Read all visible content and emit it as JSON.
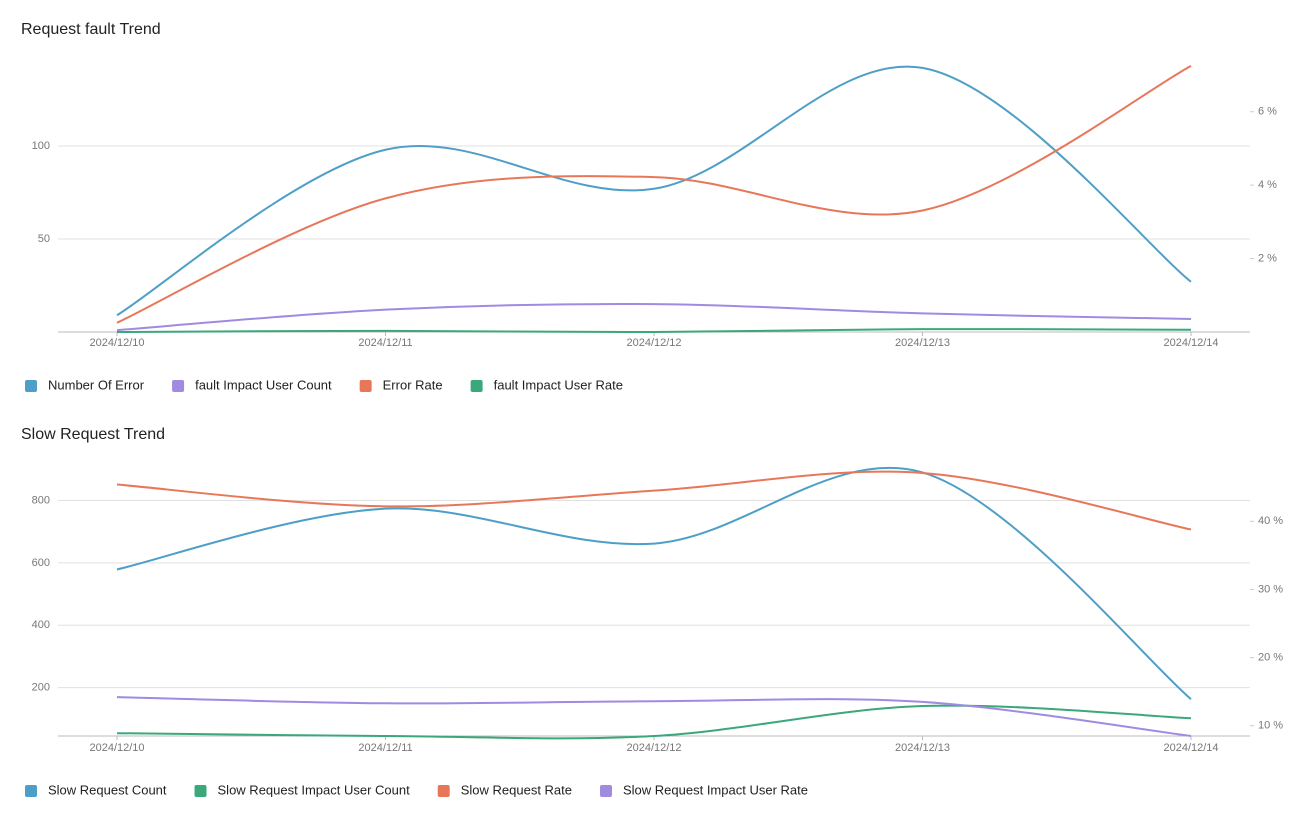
{
  "chart_data": [
    {
      "type": "line",
      "title": "Request fault Trend",
      "categories": [
        "2024/12/10",
        "2024/12/11",
        "2024/12/12",
        "2024/12/13",
        "2024/12/14"
      ],
      "series": [
        {
          "name": "Number Of Error",
          "color": "#4e9fc8",
          "values": [
            9,
            98,
            77,
            142,
            27
          ]
        },
        {
          "name": "fault Impact User Count",
          "color": "#a08be0",
          "values": [
            1,
            12,
            15,
            10,
            7
          ]
        },
        {
          "name": "Error Rate",
          "color": "#e8775a",
          "axis": "y2",
          "values": [
            0.25,
            3.64,
            4.22,
            3.31,
            7.25
          ]
        },
        {
          "name": "fault Impact User Rate",
          "color": "#3aa87a",
          "axis": "y2",
          "values": [
            0.0,
            0.03,
            0.0,
            0.08,
            0.06
          ]
        }
      ],
      "ylim": [
        0,
        150
      ],
      "yticks": [
        50,
        100
      ],
      "y2lim": [
        0,
        7.6
      ],
      "y2ticks": [
        {
          "value": 2,
          "label": "2 %"
        },
        {
          "value": 4,
          "label": "4 %"
        },
        {
          "value": 6,
          "label": "6 %"
        }
      ],
      "grid": true,
      "smooth": true,
      "legend": "bottom"
    },
    {
      "type": "line",
      "title": "Slow Request Trend",
      "categories": [
        "2024/12/10",
        "2024/12/11",
        "2024/12/12",
        "2024/12/13",
        "2024/12/14"
      ],
      "series": [
        {
          "name": "Slow Request Count",
          "color": "#4e9fc8",
          "values": [
            579,
            774,
            662,
            890,
            163
          ]
        },
        {
          "name": "Slow Request Impact User Count",
          "color": "#3aa87a",
          "values": [
            54,
            45,
            45,
            141,
            102
          ]
        },
        {
          "name": "Slow Request Rate",
          "color": "#e8775a",
          "axis": "y2",
          "values": [
            45.4,
            42.2,
            44.5,
            47.1,
            38.8
          ]
        },
        {
          "name": "Slow Request Impact User Rate",
          "color": "#a08be0",
          "axis": "y2",
          "values": [
            14.2,
            13.3,
            13.6,
            13.5,
            8.5
          ]
        }
      ],
      "ylim": [
        45,
        930
      ],
      "yticks": [
        200,
        400,
        600,
        800
      ],
      "y2lim": [
        8.5,
        49
      ],
      "y2ticks": [
        {
          "value": 10,
          "label": "10 %"
        },
        {
          "value": 20,
          "label": "20 %"
        },
        {
          "value": 30,
          "label": "30 %"
        },
        {
          "value": 40,
          "label": "40 %"
        }
      ],
      "grid": true,
      "smooth": true,
      "legend": "bottom"
    }
  ]
}
